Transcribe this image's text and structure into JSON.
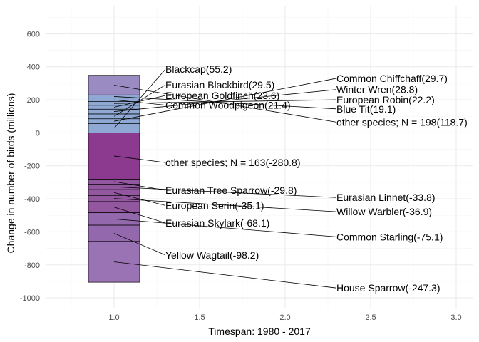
{
  "chart_data": {
    "type": "bar",
    "xlabel": "Timespan: 1980 - 2017",
    "ylabel": "Change in number of birds (millions)",
    "xlim": [
      0.6,
      3.1
    ],
    "ylim": [
      -1060,
      770
    ],
    "x_ticks": [
      "1.0",
      "1.5",
      "2.0",
      "2.5",
      "3.0"
    ],
    "y_ticks": [
      "600",
      "400",
      "200",
      "0",
      "-200",
      "-400",
      "-600",
      "-800",
      "-1000"
    ],
    "grid": true,
    "bar_x": 1.0,
    "gains": [
      {
        "label": "Blackcap(55.2)",
        "value": 55.2,
        "color": "#8fa9d4",
        "label_x": 1.3,
        "label_y": 385
      },
      {
        "label": "Common Chiffchaff(29.7)",
        "value": 29.7,
        "color": "#8fa9d4",
        "label_x": 2.3,
        "label_y": 330
      },
      {
        "label": "Eurasian Blackbird(29.5)",
        "value": 29.5,
        "color": "#8fa9d4",
        "label_x": 1.3,
        "label_y": 290
      },
      {
        "label": "Winter Wren(28.8)",
        "value": 28.8,
        "color": "#8fa9d4",
        "label_x": 2.3,
        "label_y": 262
      },
      {
        "label": "European Goldfinch(23.6)",
        "value": 23.6,
        "color": "#8fa9d4",
        "label_x": 1.3,
        "label_y": 226
      },
      {
        "label": "European Robin(22.2)",
        "value": 22.2,
        "color": "#8fa9d4",
        "label_x": 2.3,
        "label_y": 200
      },
      {
        "label": "Common Woodpigeon(21.4)",
        "value": 21.4,
        "color": "#8fa9d4",
        "label_x": 1.3,
        "label_y": 168
      },
      {
        "label": "Blue Tit(19.1)",
        "value": 19.1,
        "color": "#8fa9d4",
        "label_x": 2.3,
        "label_y": 145
      },
      {
        "label": "other species; N = 198(118.7)",
        "value": 118.7,
        "color": "#9a8bc3",
        "label_x": 2.3,
        "label_y": 65
      }
    ],
    "losses": [
      {
        "label": "other species; N = 163(-280.8)",
        "value": -280.8,
        "color": "#8b3a8f",
        "label_x": 1.3,
        "label_y": -180
      },
      {
        "label": "Eurasian Tree Sparrow(-29.8)",
        "value": -29.8,
        "color": "#9357a0",
        "label_x": 1.3,
        "label_y": -348
      },
      {
        "label": "Eurasian Linnet(-33.8)",
        "value": -33.8,
        "color": "#9357a0",
        "label_x": 2.3,
        "label_y": -392
      },
      {
        "label": "European Serin(-35.1)",
        "value": -35.1,
        "color": "#9357a0",
        "label_x": 1.3,
        "label_y": -440
      },
      {
        "label": "Willow Warbler(-36.9)",
        "value": -36.9,
        "color": "#9357a0",
        "label_x": 2.3,
        "label_y": -478
      },
      {
        "label": "Eurasian Skylark(-68.1)",
        "value": -68.1,
        "color": "#9357a0",
        "label_x": 1.3,
        "label_y": -546
      },
      {
        "label": "Common Starling(-75.1)",
        "value": -75.1,
        "color": "#9468ac",
        "label_x": 2.3,
        "label_y": -630
      },
      {
        "label": "Yellow Wagtail(-98.2)",
        "value": -98.2,
        "color": "#9468ac",
        "label_x": 1.3,
        "label_y": -740
      },
      {
        "label": "House Sparrow(-247.3)",
        "value": -247.3,
        "color": "#9a73b4",
        "label_x": 2.3,
        "label_y": -940
      }
    ]
  },
  "colors": {
    "panel_background": "#ffffff",
    "grid_major": "#ebebeb",
    "grid_minor": "#f5f5f5",
    "bar_outline": "#000000"
  }
}
